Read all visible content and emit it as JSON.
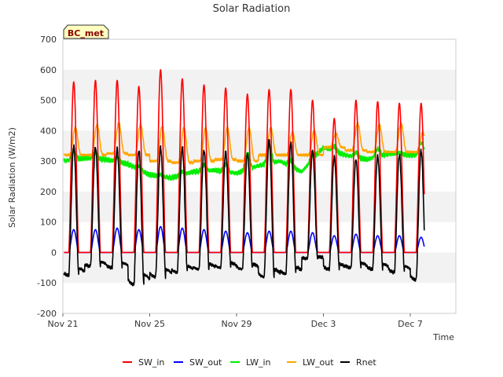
{
  "chart_data": {
    "type": "line",
    "title": "Solar Radiation",
    "xlabel": "Time",
    "ylabel": "Solar Radiation (W/m2)",
    "site_badge": "BC_met",
    "xlim_days": [
      0,
      18.1
    ],
    "ylim": [
      -200,
      700
    ],
    "yticks": [
      -200,
      -100,
      0,
      100,
      200,
      300,
      400,
      500,
      600,
      700
    ],
    "xticks": [
      {
        "day": 0,
        "label": "Nov 21"
      },
      {
        "day": 4,
        "label": "Nov 25"
      },
      {
        "day": 8,
        "label": "Nov 29"
      },
      {
        "day": 12,
        "label": "Dec 3"
      },
      {
        "day": 16,
        "label": "Dec 7"
      }
    ],
    "grid_bands": true,
    "legend_position": "bottom",
    "days": [
      0,
      1,
      2,
      3,
      4,
      5,
      6,
      7,
      8,
      9,
      10,
      11,
      12,
      13,
      14,
      15,
      16
    ],
    "series": [
      {
        "name": "SW_in",
        "color": "#ff0000",
        "daily_peak": [
          560,
          565,
          565,
          545,
          600,
          570,
          550,
          540,
          520,
          535,
          535,
          500,
          440,
          500,
          495,
          490,
          490
        ]
      },
      {
        "name": "SW_out",
        "color": "#0000ff",
        "daily_peak": [
          75,
          75,
          80,
          75,
          85,
          80,
          75,
          70,
          65,
          70,
          70,
          65,
          55,
          60,
          55,
          55,
          50
        ]
      },
      {
        "name": "LW_in",
        "color": "#00ee00",
        "daily_baseline": [
          300,
          310,
          305,
          290,
          255,
          245,
          265,
          270,
          260,
          285,
          300,
          265,
          345,
          320,
          305,
          325,
          320
        ],
        "daily_peak": [
          325,
          330,
          320,
          300,
          260,
          255,
          285,
          295,
          310,
          345,
          320,
          280,
          360,
          335,
          330,
          330,
          360
        ]
      },
      {
        "name": "LW_out",
        "color": "#ffa500",
        "daily_baseline": [
          320,
          320,
          325,
          320,
          300,
          295,
          300,
          305,
          300,
          320,
          320,
          320,
          345,
          335,
          330,
          330,
          330
        ],
        "daily_peak": [
          410,
          420,
          425,
          420,
          415,
          410,
          410,
          410,
          410,
          410,
          395,
          400,
          390,
          425,
          420,
          425,
          395
        ]
      },
      {
        "name": "Rnet",
        "color": "#000000",
        "daily_peak": [
          350,
          345,
          340,
          335,
          345,
          345,
          335,
          330,
          325,
          370,
          360,
          335,
          315,
          305,
          315,
          320,
          335
        ],
        "night_min": [
          -75,
          -45,
          -50,
          -105,
          -80,
          -65,
          -55,
          -50,
          -55,
          -80,
          -70,
          -20,
          -55,
          -50,
          -55,
          -65,
          -90
        ]
      }
    ]
  }
}
